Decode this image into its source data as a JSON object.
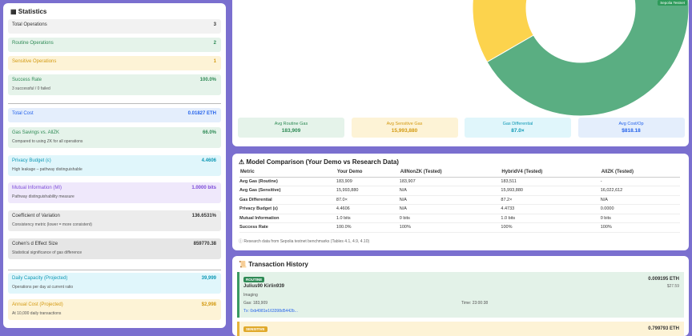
{
  "statistics": {
    "title": "Statistics",
    "rows": [
      {
        "label": "Total Operations",
        "value": "3"
      },
      {
        "label": "Routine Operations",
        "value": "2"
      },
      {
        "label": "Sensitive Operations",
        "value": "1"
      },
      {
        "label": "Success Rate",
        "value": "100.0%",
        "note": "3 successful / 0 failed"
      },
      {
        "label": "Total Cost",
        "value": "0.01827 ETH"
      },
      {
        "label": "Gas Savings vs. AllZK",
        "value": "66.0%",
        "note": "Compared to using ZK for all operations"
      },
      {
        "label": "Privacy Budget (ε)",
        "value": "4.4606",
        "note": "High leakage – pathway distinguishable"
      },
      {
        "label": "Mutual Information (MI)",
        "value": "1.0000 bits",
        "note": "Pathway distinguishability measure"
      },
      {
        "label": "Coefficient of Variation",
        "value": "136.6531%",
        "note": "Consistency metric (lower = more consistent)"
      },
      {
        "label": "Cohen's d Effect Size",
        "value": "859770.38",
        "note": "Statistical significance of gas difference"
      },
      {
        "label": "Daily Capacity (Projected)",
        "value": "39,999",
        "note": "Operations per day at current ratio"
      },
      {
        "label": "Annual Cost (Projected)",
        "value": "$2,998",
        "note": "At 10,000 daily transactions"
      }
    ]
  },
  "chart_data": {
    "type": "pie",
    "categories": [
      "Routine",
      "Sensitive"
    ],
    "values": [
      2,
      1
    ],
    "colors": [
      "#5aae82",
      "#fcd34d"
    ]
  },
  "badge": "Sepolia Testnet",
  "summary": [
    {
      "label": "Avg Routine Gas",
      "value": "183,909"
    },
    {
      "label": "Avg Sensitive Gas",
      "value": "15,993,880"
    },
    {
      "label": "Gas Differential",
      "value": "87.0×"
    },
    {
      "label": "Avg Cost/Op",
      "value": "$818.18"
    }
  ],
  "comparison": {
    "title": "Model Comparison (Your Demo vs Research Data)",
    "columns": [
      "Metric",
      "Your Demo",
      "AllNonZK (Tested)",
      "HybridV4 (Tested)",
      "AllZK (Tested)"
    ],
    "rows": [
      [
        "Avg Gas (Routine)",
        "183,909",
        "183,907",
        "183,511",
        "-"
      ],
      [
        "Avg Gas (Sensitive)",
        "15,993,880",
        "N/A",
        "15,993,880",
        "16,022,612"
      ],
      [
        "Gas Differential",
        "87.0×",
        "N/A",
        "87.2×",
        "N/A"
      ],
      [
        "Privacy Budget (ε)",
        "4.4606",
        "N/A",
        "4.4733",
        "0.0000"
      ],
      [
        "Mutual Information",
        "1.0 bits",
        "0 bits",
        "1.0 bits",
        "0 bits"
      ],
      [
        "Success Rate",
        "100.0%",
        "100%",
        "100%",
        "100%"
      ]
    ],
    "footnote": "Research data from Sepolia testnet benchmarks (Tables 4.1, 4.9, 4.10)"
  },
  "transactions": {
    "title": "Transaction History",
    "items": [
      {
        "badge": "ROUTINE",
        "name": "Julius90 Kirlin939",
        "category": "Imaging",
        "gas": "Gas: 183,909",
        "time": "Time: 23:00:38",
        "tx": "Tx: 0xb4981e163398d5442b...",
        "eth": "0.009195 ETH",
        "usd": "$27.59"
      },
      {
        "badge": "SENSITIVE",
        "eth": "0.799793 ETH"
      }
    ]
  }
}
